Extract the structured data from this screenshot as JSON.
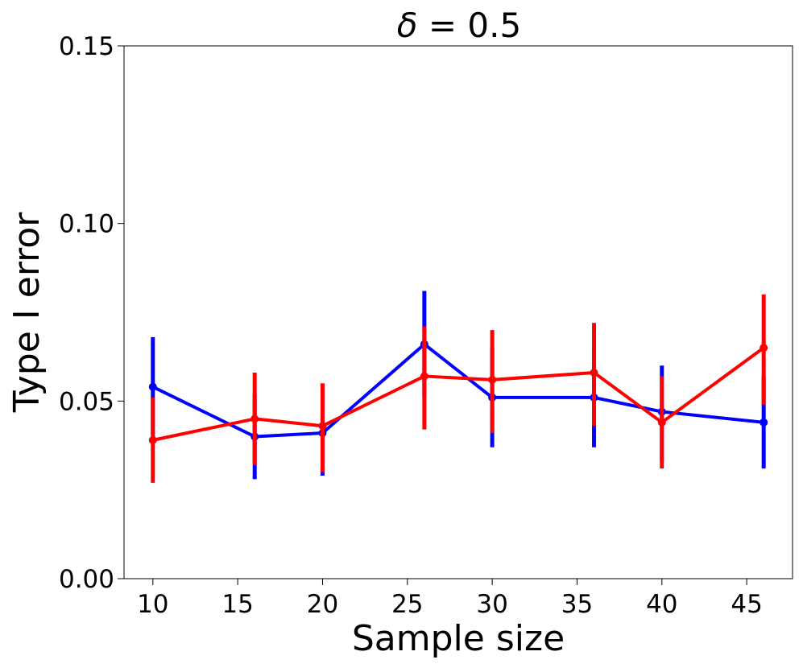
{
  "chart_data": {
    "type": "line",
    "title_symbol": "δ",
    "title_rest": " = 0.5",
    "xlabel": "Sample size",
    "ylabel": "Type I error",
    "xlim": [
      8.3,
      47.7
    ],
    "ylim": [
      0.0,
      0.15
    ],
    "x_ticks": [
      10,
      15,
      20,
      25,
      30,
      35,
      40,
      45
    ],
    "y_ticks": [
      0.0,
      0.05,
      0.1,
      0.15
    ],
    "y_tick_labels": [
      "0.00",
      "0.05",
      "0.10",
      "0.15"
    ],
    "grid": false,
    "legend": "none",
    "x": [
      10,
      16,
      20,
      26,
      30,
      36,
      40,
      46
    ],
    "series": [
      {
        "name": "blue",
        "color": "#0000ff",
        "values": [
          0.054,
          0.04,
          0.041,
          0.066,
          0.051,
          0.051,
          0.047,
          0.044
        ],
        "err_low": [
          0.04,
          0.028,
          0.029,
          0.051,
          0.037,
          0.037,
          0.033,
          0.031
        ],
        "err_high": [
          0.068,
          0.052,
          0.053,
          0.081,
          0.065,
          0.065,
          0.06,
          0.057
        ]
      },
      {
        "name": "red",
        "color": "#ff0000",
        "values": [
          0.039,
          0.045,
          0.043,
          0.057,
          0.056,
          0.058,
          0.044,
          0.065
        ],
        "err_low": [
          0.027,
          0.032,
          0.03,
          0.042,
          0.041,
          0.043,
          0.031,
          0.049
        ],
        "err_high": [
          0.051,
          0.058,
          0.055,
          0.071,
          0.07,
          0.072,
          0.057,
          0.08
        ]
      }
    ]
  }
}
